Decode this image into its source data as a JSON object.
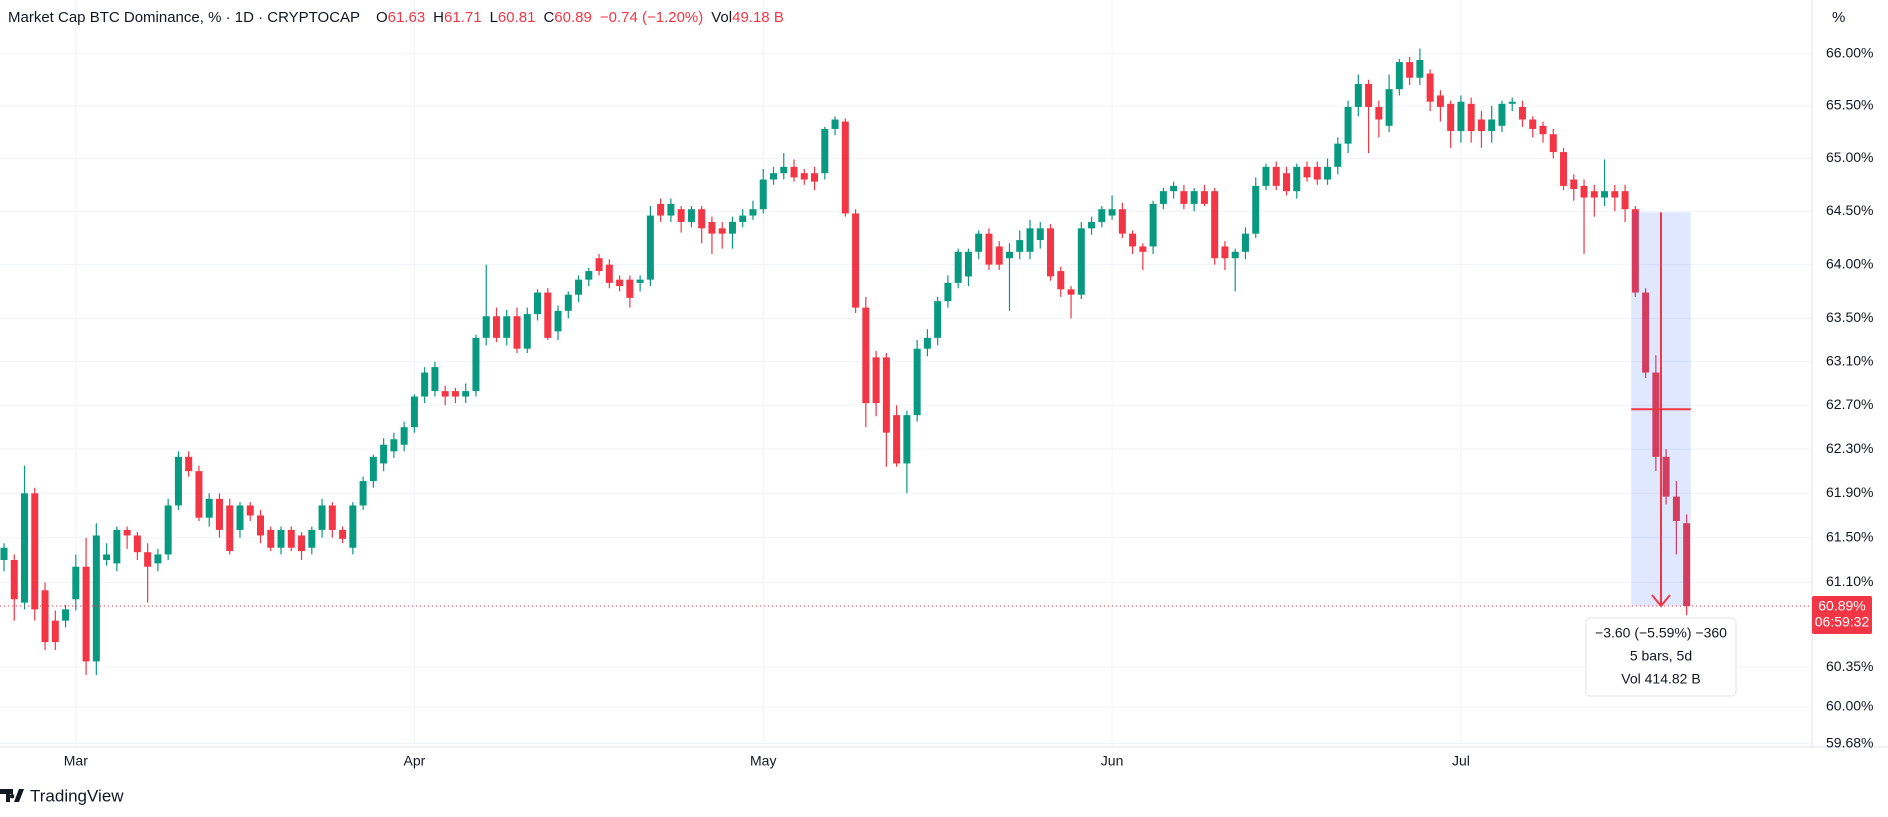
{
  "chart_data": {
    "type": "candlestick",
    "title": "Market Cap BTC Dominance, % · 1D · CRYPTOCAP",
    "legend": {
      "labels": [
        "O",
        "H",
        "L",
        "C"
      ],
      "change": "−0.74 (−1.20%)",
      "volume_label": "Vol",
      "volume": "49.18 B"
    },
    "categories": [
      null,
      null,
      null,
      null,
      null,
      null,
      null,
      "Mar",
      null,
      null,
      null,
      null,
      null,
      null,
      null,
      null,
      null,
      null,
      null,
      null,
      null,
      null,
      null,
      null,
      null,
      null,
      null,
      null,
      null,
      null,
      null,
      null,
      null,
      null,
      null,
      null,
      null,
      null,
      null,
      null,
      "Apr",
      null,
      null,
      null,
      null,
      null,
      null,
      null,
      null,
      null,
      null,
      null,
      null,
      null,
      null,
      null,
      null,
      null,
      null,
      null,
      null,
      null,
      null,
      null,
      null,
      null,
      null,
      null,
      null,
      null,
      null,
      null,
      null,
      null,
      "May",
      null,
      null,
      null,
      null,
      null,
      null,
      null,
      null,
      null,
      null,
      null,
      null,
      null,
      null,
      null,
      null,
      null,
      null,
      null,
      null,
      null,
      null,
      null,
      null,
      null,
      null,
      null,
      null,
      null,
      null,
      null,
      null,
      null,
      "Jun",
      null,
      null,
      null,
      null,
      null,
      null,
      null,
      null,
      null,
      null,
      null,
      null,
      null,
      null,
      null,
      null,
      null,
      null,
      null,
      null,
      null,
      null,
      null,
      null,
      null,
      null,
      null,
      null,
      null,
      null,
      null,
      null,
      null,
      "Jul",
      null,
      null,
      null,
      null,
      null,
      null,
      null,
      null,
      null,
      null,
      null,
      null,
      null,
      null,
      null,
      null,
      null,
      null,
      null,
      null,
      null,
      null
    ],
    "open": [
      61.3,
      61.3,
      60.92,
      61.9,
      61.03,
      60.76,
      60.76,
      60.95,
      61.24,
      60.4,
      61.3,
      61.27,
      61.57,
      61.52,
      61.37,
      61.27,
      61.35,
      61.79,
      62.23,
      62.1,
      61.68,
      61.85,
      61.79,
      61.57,
      61.79,
      61.7,
      61.57,
      61.41,
      61.57,
      61.52,
      61.41,
      61.57,
      61.79,
      61.57,
      61.41,
      61.79,
      62.01,
      62.17,
      62.28,
      62.34,
      62.5,
      62.78,
      62.83,
      62.83,
      62.83,
      62.78,
      62.83,
      63.32,
      63.52,
      63.32,
      63.52,
      63.22,
      63.54,
      63.74,
      63.38,
      63.57,
      63.72,
      63.86,
      64.06,
      64.0,
      63.86,
      63.86,
      63.83,
      63.86,
      64.57,
      64.46,
      64.52,
      64.4,
      64.52,
      64.4,
      64.34,
      64.29,
      64.4,
      64.46,
      64.52,
      64.8,
      64.86,
      64.92,
      64.86,
      64.86,
      64.86,
      65.28,
      65.35,
      64.48,
      63.6,
      63.14,
      63.14,
      62.61,
      62.17,
      62.61,
      63.22,
      63.32,
      63.66,
      63.83,
      63.89,
      64.12,
      64.29,
      64.17,
      64.06,
      64.12,
      64.12,
      64.23,
      64.34,
      63.94,
      63.77,
      63.72,
      64.34,
      64.4,
      64.46,
      64.52,
      64.29,
      64.17,
      64.17,
      64.57,
      64.69,
      64.69,
      64.57,
      64.69,
      64.69,
      64.17,
      64.06,
      64.12,
      64.29,
      64.74,
      64.92,
      64.86,
      64.69,
      64.92,
      64.92,
      64.8,
      64.92,
      65.14,
      65.49,
      65.71,
      65.49,
      65.31,
      65.66,
      65.92,
      65.77,
      65.81,
      65.6,
      65.52,
      65.26,
      65.52,
      65.37,
      65.26,
      65.31,
      65.52,
      65.49,
      65.37,
      65.31,
      65.23,
      65.06,
      64.8,
      64.74,
      64.69,
      64.63,
      64.69,
      64.69,
      64.52,
      63.74,
      63.0,
      62.23,
      61.87,
      61.63
    ],
    "high": [
      61.45,
      61.35,
      62.15,
      61.95,
      61.1,
      60.85,
      60.9,
      61.35,
      61.5,
      61.63,
      61.45,
      61.6,
      61.6,
      61.55,
      61.45,
      61.4,
      61.85,
      62.28,
      62.28,
      62.15,
      61.9,
      61.9,
      61.85,
      61.82,
      61.82,
      61.75,
      61.6,
      61.6,
      61.6,
      61.55,
      61.6,
      61.85,
      61.82,
      61.6,
      61.82,
      62.05,
      62.25,
      62.4,
      62.45,
      62.55,
      62.8,
      63.05,
      63.1,
      62.88,
      62.86,
      62.9,
      63.35,
      64.0,
      63.6,
      63.58,
      63.6,
      63.6,
      63.77,
      63.78,
      63.62,
      63.75,
      63.9,
      63.97,
      64.1,
      64.05,
      63.9,
      63.9,
      63.9,
      64.55,
      64.62,
      64.62,
      64.55,
      64.55,
      64.55,
      64.45,
      64.4,
      64.45,
      64.52,
      64.6,
      64.9,
      64.92,
      65.05,
      64.99,
      64.9,
      64.92,
      65.3,
      65.4,
      65.38,
      64.52,
      63.7,
      63.2,
      63.18,
      62.7,
      62.65,
      63.3,
      63.4,
      63.7,
      63.9,
      64.15,
      64.15,
      64.32,
      64.34,
      64.22,
      64.2,
      64.32,
      64.42,
      64.4,
      64.38,
      63.98,
      63.8,
      64.4,
      64.45,
      64.55,
      64.65,
      64.58,
      64.32,
      64.2,
      64.6,
      64.72,
      64.78,
      64.75,
      64.72,
      64.75,
      64.72,
      64.22,
      64.15,
      64.35,
      64.82,
      64.95,
      64.97,
      64.92,
      64.95,
      64.97,
      64.97,
      65.0,
      65.2,
      65.55,
      65.8,
      65.75,
      65.55,
      65.8,
      65.95,
      65.97,
      66.05,
      65.85,
      65.65,
      65.55,
      65.6,
      65.58,
      65.45,
      65.5,
      65.55,
      65.58,
      65.55,
      65.4,
      65.35,
      65.28,
      65.1,
      64.85,
      64.8,
      64.75,
      64.99,
      64.75,
      64.75,
      64.55,
      63.78,
      63.16,
      62.3,
      62.01,
      61.71
    ],
    "low": [
      61.2,
      60.76,
      60.86,
      60.76,
      60.5,
      60.5,
      60.7,
      60.85,
      60.28,
      60.28,
      61.25,
      61.2,
      61.4,
      61.3,
      60.92,
      61.2,
      61.3,
      61.75,
      62.05,
      61.65,
      61.6,
      61.5,
      61.35,
      61.5,
      61.65,
      61.45,
      61.38,
      61.35,
      61.38,
      61.3,
      61.35,
      61.5,
      61.5,
      61.45,
      61.35,
      61.75,
      61.95,
      62.1,
      62.22,
      62.28,
      62.45,
      62.72,
      62.78,
      62.7,
      62.72,
      62.72,
      62.78,
      63.25,
      63.28,
      63.25,
      63.18,
      63.18,
      63.48,
      63.3,
      63.3,
      63.5,
      63.65,
      63.8,
      63.9,
      63.78,
      63.75,
      63.6,
      63.75,
      63.8,
      64.4,
      64.4,
      64.3,
      64.35,
      64.2,
      64.1,
      64.15,
      64.15,
      64.35,
      64.42,
      64.48,
      64.75,
      64.8,
      64.78,
      64.75,
      64.7,
      64.8,
      65.22,
      64.45,
      63.55,
      62.5,
      62.6,
      62.14,
      62.14,
      61.9,
      62.55,
      63.15,
      63.25,
      63.6,
      63.78,
      63.8,
      64.05,
      63.95,
      63.95,
      63.57,
      64.05,
      64.05,
      64.15,
      63.85,
      63.7,
      63.5,
      63.68,
      64.28,
      64.35,
      64.42,
      64.25,
      64.1,
      63.95,
      64.1,
      64.52,
      64.62,
      64.52,
      64.5,
      64.55,
      64.0,
      63.95,
      63.75,
      64.05,
      64.25,
      64.7,
      64.7,
      64.65,
      64.62,
      64.78,
      64.75,
      64.75,
      64.85,
      65.05,
      65.4,
      65.05,
      65.2,
      65.25,
      65.6,
      65.7,
      65.7,
      65.45,
      65.35,
      65.1,
      65.15,
      65.15,
      65.1,
      65.15,
      65.25,
      65.45,
      65.3,
      65.2,
      65.15,
      65.0,
      64.7,
      64.6,
      64.1,
      64.45,
      64.55,
      64.5,
      64.4,
      63.7,
      62.95,
      62.1,
      61.8,
      61.35,
      60.81
    ],
    "close": [
      61.41,
      60.95,
      61.9,
      60.86,
      60.57,
      60.57,
      60.86,
      61.24,
      60.4,
      61.52,
      61.35,
      61.57,
      61.52,
      61.37,
      61.24,
      61.35,
      61.79,
      62.23,
      62.1,
      61.68,
      61.85,
      61.57,
      61.38,
      61.79,
      61.7,
      61.52,
      61.41,
      61.57,
      61.41,
      61.38,
      61.57,
      61.79,
      61.57,
      61.49,
      61.79,
      62.01,
      62.23,
      62.34,
      62.39,
      62.5,
      62.78,
      63.0,
      63.05,
      62.78,
      62.78,
      62.83,
      63.32,
      63.52,
      63.32,
      63.52,
      63.22,
      63.54,
      63.74,
      63.32,
      63.57,
      63.72,
      63.86,
      63.94,
      63.94,
      63.83,
      63.8,
      63.69,
      63.86,
      64.46,
      64.46,
      64.57,
      64.4,
      64.52,
      64.34,
      64.29,
      64.29,
      64.4,
      64.46,
      64.52,
      64.8,
      64.86,
      64.92,
      64.82,
      64.8,
      64.78,
      65.28,
      65.37,
      64.48,
      63.6,
      62.72,
      62.72,
      62.45,
      62.17,
      62.61,
      63.22,
      63.32,
      63.66,
      63.83,
      64.12,
      64.12,
      64.29,
      64.0,
      64.0,
      64.12,
      64.23,
      64.34,
      64.34,
      63.89,
      63.77,
      63.72,
      64.34,
      64.4,
      64.52,
      64.52,
      64.29,
      64.17,
      64.12,
      64.57,
      64.69,
      64.74,
      64.57,
      64.69,
      64.57,
      64.06,
      64.06,
      64.12,
      64.29,
      64.74,
      64.92,
      64.74,
      64.69,
      64.92,
      64.82,
      64.8,
      64.92,
      65.14,
      65.49,
      65.71,
      65.49,
      65.37,
      65.66,
      65.92,
      65.77,
      65.94,
      65.54,
      65.49,
      65.26,
      65.54,
      65.26,
      65.26,
      65.37,
      65.52,
      65.54,
      65.37,
      65.28,
      65.23,
      65.06,
      64.74,
      64.71,
      64.63,
      64.63,
      64.69,
      64.63,
      64.52,
      63.74,
      63.0,
      62.23,
      61.87,
      61.65,
      60.89
    ],
    "up_color": "#089981",
    "down_color": "#f23645",
    "log_scale": true,
    "grid": true,
    "y_unit": "%",
    "ylim": [
      59.65,
      66.52
    ],
    "yticks": [
      {
        "value": 66,
        "label": "66.00%"
      },
      {
        "value": 65.5,
        "label": "65.50%"
      },
      {
        "value": 65,
        "label": "65.00%"
      },
      {
        "value": 64.5,
        "label": "64.50%"
      },
      {
        "value": 64,
        "label": "64.00%"
      },
      {
        "value": 63.5,
        "label": "63.50%"
      },
      {
        "value": 63.1,
        "label": "63.10%"
      },
      {
        "value": 62.7,
        "label": "62.70%"
      },
      {
        "value": 62.3,
        "label": "62.30%"
      },
      {
        "value": 61.9,
        "label": "61.90%"
      },
      {
        "value": 61.5,
        "label": "61.50%"
      },
      {
        "value": 61.1,
        "label": "61.10%"
      },
      {
        "value": 60.35,
        "label": "60.35%"
      },
      {
        "value": 60,
        "label": "60.00%"
      },
      {
        "value": 59.68,
        "label": "59.68%"
      }
    ],
    "price_line": {
      "value": 60.89,
      "label": "60.89%"
    },
    "countdown": "06:59:32",
    "measure": {
      "start": 64.49,
      "end": 60.89,
      "lines": [
        "−3.60 (−5.59%) −360",
        "5 bars, 5d",
        "Vol 414.82 B"
      ]
    },
    "watermark": "TradingView"
  }
}
